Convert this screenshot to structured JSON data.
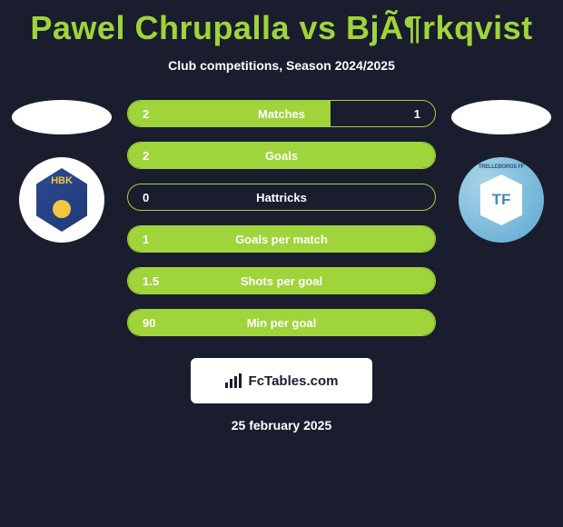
{
  "title": "Pawel Chrupalla vs BjÃ¶rkqvist",
  "subtitle": "Club competitions, Season 2024/2025",
  "colors": {
    "background": "#1a1d2e",
    "accent": "#9fd43a",
    "text": "#ffffff",
    "brand_bg": "#ffffff",
    "brand_text": "#1a1d2e"
  },
  "left_badge": {
    "ring_bg": "#ffffff",
    "shield_bg": "#2b4a8e",
    "text": "HBK",
    "text_color": "#f5c542"
  },
  "right_badge": {
    "ring_bg": "#7ab8d8",
    "shield_bg": "#ffffff",
    "text": "TF",
    "text_color": "#3a8dc0",
    "ring_text": "TRELLEBORGS FF"
  },
  "rows": [
    {
      "label": "Matches",
      "left": "2",
      "right": "1",
      "fill_pct": 66
    },
    {
      "label": "Goals",
      "left": "2",
      "right": "",
      "fill_pct": 100
    },
    {
      "label": "Hattricks",
      "left": "0",
      "right": "",
      "fill_pct": 0
    },
    {
      "label": "Goals per match",
      "left": "1",
      "right": "",
      "fill_pct": 100
    },
    {
      "label": "Shots per goal",
      "left": "1.5",
      "right": "",
      "fill_pct": 100
    },
    {
      "label": "Min per goal",
      "left": "90",
      "right": "",
      "fill_pct": 100
    }
  ],
  "brand": "FcTables.com",
  "date": "25 february 2025"
}
